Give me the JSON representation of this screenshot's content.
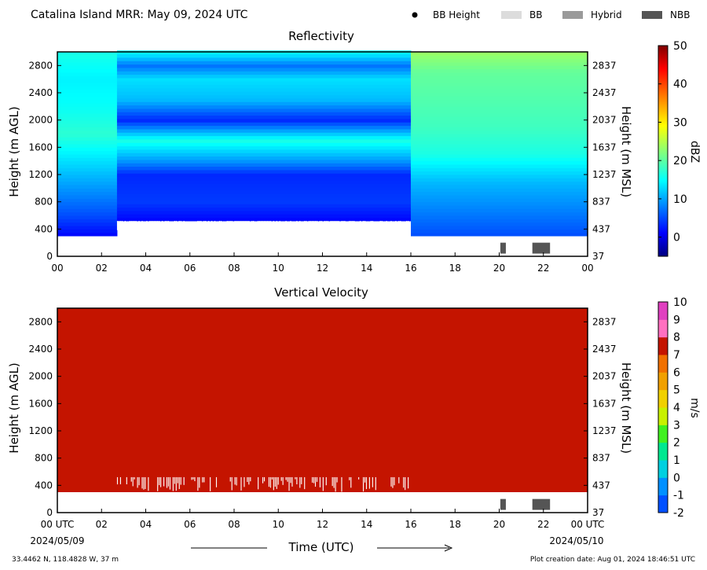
{
  "header": {
    "title": "Catalina Island MRR:  May 09, 2024 UTC",
    "legend": [
      {
        "label": "BB Height",
        "symbol": "dot",
        "color": "#000000"
      },
      {
        "label": "BB",
        "symbol": "bar",
        "color": "#dcdcdc"
      },
      {
        "label": "Hybrid",
        "symbol": "bar",
        "color": "#9a9a9a"
      },
      {
        "label": "NBB",
        "symbol": "bar",
        "color": "#555555"
      }
    ]
  },
  "footer": {
    "coords": "33.4462 N, 118.4828 W, 37 m",
    "creation": "Plot creation date: Aug 01, 2024 18:46:51 UTC",
    "xlabel": "Time (UTC)",
    "start_date": "2024/05/09",
    "end_date": "2024/05/10"
  },
  "chart_data": [
    {
      "type": "heatmap",
      "title": "Reflectivity",
      "ylabel_left": "Height (m AGL)",
      "ylabel_right": "Height (m MSL)",
      "x_ticks": [
        "00",
        "02",
        "04",
        "06",
        "08",
        "10",
        "12",
        "14",
        "16",
        "18",
        "20",
        "22",
        "00"
      ],
      "x_range_hours": [
        0,
        24
      ],
      "y_range_m_agl": [
        0,
        3000
      ],
      "y_ticks_left": [
        0,
        400,
        800,
        1200,
        1600,
        2000,
        2400,
        2800
      ],
      "y_ticks_right": [
        37,
        437,
        837,
        1237,
        1637,
        2037,
        2437,
        2837
      ],
      "colorbar": {
        "label": "dBZ",
        "min": -5,
        "max": 50,
        "ticks": [
          0,
          10,
          20,
          30,
          40,
          50
        ]
      },
      "no_data_below_m": 300,
      "data_top_m": 3000,
      "echo_base_m": [
        [
          0,
          300
        ],
        [
          2.7,
          300
        ],
        [
          2.7,
          520
        ],
        [
          16,
          520
        ],
        [
          16,
          300
        ],
        [
          24,
          300
        ]
      ],
      "bright_band_marks": [
        {
          "type": "NBB",
          "start_hour": 20.05,
          "end_hour": 20.3,
          "height_m": [
            40,
            200
          ]
        },
        {
          "type": "NBB",
          "start_hour": 21.5,
          "end_hour": 22.3,
          "height_m": [
            40,
            200
          ]
        }
      ],
      "dbz_profile_0_2.7h": [
        [
          300,
          2
        ],
        [
          600,
          6
        ],
        [
          1000,
          10
        ],
        [
          1400,
          14
        ],
        [
          1800,
          18
        ],
        [
          2200,
          16
        ],
        [
          2600,
          15
        ],
        [
          3000,
          17
        ]
      ],
      "dbz_profile_2.7_16h": [
        [
          520,
          2
        ],
        [
          800,
          5
        ],
        [
          1200,
          4
        ],
        [
          1400,
          10
        ],
        [
          1700,
          17
        ],
        [
          2000,
          4
        ],
        [
          2300,
          12
        ],
        [
          2600,
          14
        ],
        [
          2800,
          8
        ],
        [
          3000,
          16
        ]
      ],
      "dbz_profile_16_24h": [
        [
          300,
          6
        ],
        [
          700,
          9
        ],
        [
          1100,
          12
        ],
        [
          1500,
          17
        ],
        [
          1900,
          19
        ],
        [
          2300,
          20
        ],
        [
          2700,
          21
        ],
        [
          3000,
          24
        ]
      ]
    },
    {
      "type": "heatmap",
      "title": "Vertical Velocity",
      "ylabel_left": "Height (m AGL)",
      "ylabel_right": "Height (m MSL)",
      "x_ticks": [
        "00 UTC",
        "02",
        "04",
        "06",
        "08",
        "10",
        "12",
        "14",
        "16",
        "18",
        "20",
        "22",
        "00 UTC"
      ],
      "x_range_hours": [
        0,
        24
      ],
      "y_range_m_agl": [
        0,
        3000
      ],
      "y_ticks_left": [
        0,
        400,
        800,
        1200,
        1600,
        2000,
        2400,
        2800
      ],
      "y_ticks_right": [
        37,
        437,
        837,
        1237,
        1637,
        2037,
        2437,
        2837
      ],
      "colorbar": {
        "label": "m/s",
        "min": -2,
        "max": 10,
        "ticks": [
          -2,
          -1,
          0,
          1,
          2,
          3,
          4,
          5,
          6,
          7,
          8,
          9,
          10
        ]
      },
      "no_data_below_m": 300,
      "data_top_m": 3000,
      "dominant_value_ms": 6,
      "echo_base_m": [
        [
          0,
          300
        ],
        [
          2.7,
          300
        ],
        [
          2.7,
          520
        ],
        [
          16,
          520
        ],
        [
          16,
          300
        ],
        [
          24,
          300
        ]
      ],
      "bright_band_marks": [
        {
          "type": "NBB",
          "start_hour": 20.05,
          "end_hour": 20.3,
          "height_m": [
            40,
            200
          ]
        },
        {
          "type": "NBB",
          "start_hour": 21.5,
          "end_hour": 22.3,
          "height_m": [
            40,
            200
          ]
        }
      ]
    }
  ]
}
